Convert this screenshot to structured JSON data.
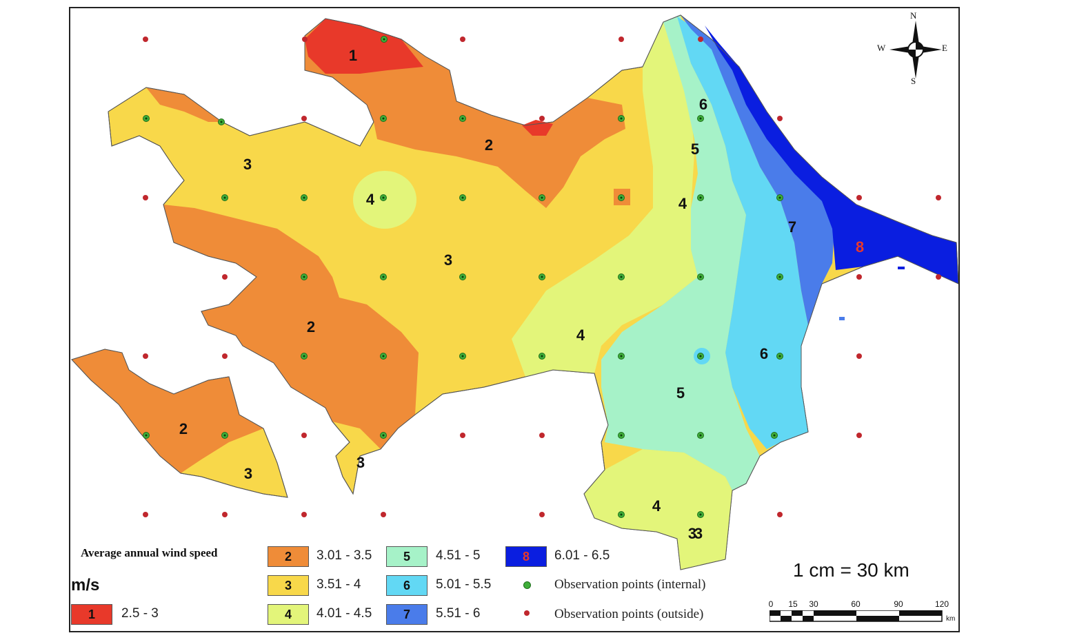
{
  "legend": {
    "title": "Average annual wind speed",
    "unit": "m/s",
    "classes": [
      {
        "id": "1",
        "range": "2.5 - 3",
        "color": "#e8392a",
        "text_color": "#111111"
      },
      {
        "id": "2",
        "range": "3.01 - 3.5",
        "color": "#ef8c38",
        "text_color": "#111111"
      },
      {
        "id": "3",
        "range": "3.51 - 4",
        "color": "#f8d84a",
        "text_color": "#111111"
      },
      {
        "id": "4",
        "range": "4.01 - 4.5",
        "color": "#e3f57a",
        "text_color": "#111111"
      },
      {
        "id": "5",
        "range": "4.51 - 5",
        "color": "#a6f2c8",
        "text_color": "#111111"
      },
      {
        "id": "6",
        "range": "5.01 - 5.5",
        "color": "#62d8f4",
        "text_color": "#111111"
      },
      {
        "id": "7",
        "range": "5.51 - 6",
        "color": "#4a7cea",
        "text_color": "#111111"
      },
      {
        "id": "8",
        "range": "6.01 - 6.5",
        "color": "#0a1ee0",
        "text_color": "#e8392a"
      }
    ],
    "observations": {
      "internal_label": "Observation points (internal)",
      "outside_label": "Observation points (outside)",
      "internal_color": "#3fae3a",
      "outside_color": "#c0272d"
    }
  },
  "scale": {
    "text": "1 cm = 30 km",
    "ticks": [
      "0",
      "15",
      "30",
      "60",
      "90",
      "120"
    ],
    "unit": "km"
  },
  "compass": {
    "n": "N",
    "s": "S",
    "e": "E",
    "w": "W"
  },
  "zone_labels": [
    "1",
    "2",
    "3",
    "3",
    "4",
    "3",
    "2",
    "2",
    "3",
    "3",
    "4",
    "4",
    "5",
    "6",
    "5",
    "4",
    "6",
    "7",
    "8",
    "3"
  ]
}
